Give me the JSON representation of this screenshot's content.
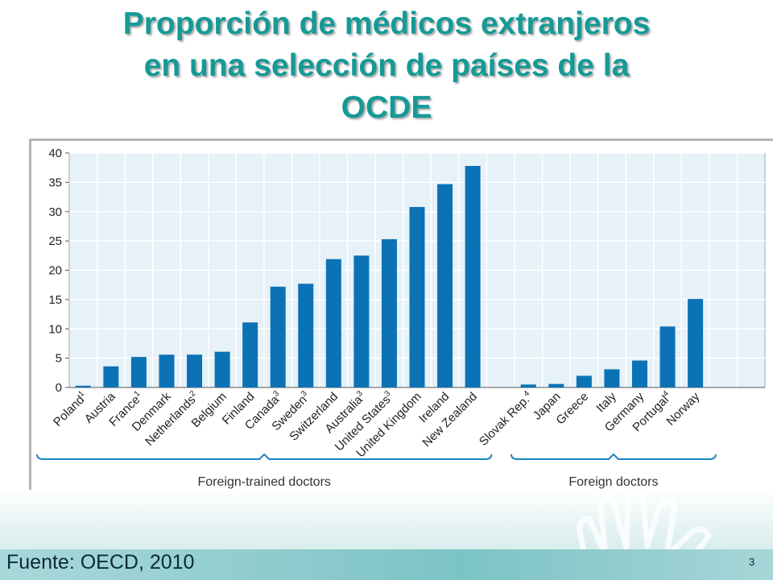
{
  "slide": {
    "title_lines": [
      "Proporción de médicos extranjeros",
      "en una selección de países de la",
      "OCDE"
    ],
    "source": "Fuente: OECD, 2010",
    "page_number": "3"
  },
  "colors": {
    "title": "#159a96",
    "bar": "#0b72b5",
    "plot_bg": "#e6f1f8",
    "grid": "#ffffff",
    "bracket": "#1a84c4"
  },
  "chart_data": {
    "type": "bar",
    "ylim": [
      0,
      40
    ],
    "yticks": [
      0,
      5,
      10,
      15,
      20,
      25,
      30,
      35,
      40
    ],
    "grid": true,
    "groups": [
      {
        "name": "Foreign-trained doctors",
        "categories": [
          "Poland",
          "Austria",
          "France",
          "Denmark",
          "Netherlands",
          "Belgium",
          "Finland",
          "Canada",
          "Sweden",
          "Switzerland",
          "Australia",
          "United States",
          "United Kingdom",
          "Ireland",
          "New Zealand"
        ],
        "superscripts": [
          "1",
          "",
          "1",
          "",
          "2",
          "",
          "",
          "3",
          "3",
          "",
          "3",
          "3",
          "",
          "",
          ""
        ],
        "values": [
          0.3,
          3.6,
          5.2,
          5.6,
          5.6,
          6.1,
          11.1,
          17.2,
          17.7,
          21.9,
          22.5,
          25.3,
          30.8,
          34.7,
          37.8
        ]
      },
      {
        "name": "Foreign doctors",
        "categories": [
          "Slovak Rep.",
          "Japan",
          "Greece",
          "Italy",
          "Germany",
          "Portugal",
          "Norway"
        ],
        "superscripts": [
          "4",
          "",
          "",
          "",
          "",
          "4",
          ""
        ],
        "values": [
          0.5,
          0.6,
          2.0,
          3.1,
          4.6,
          10.4,
          15.1
        ]
      }
    ]
  }
}
